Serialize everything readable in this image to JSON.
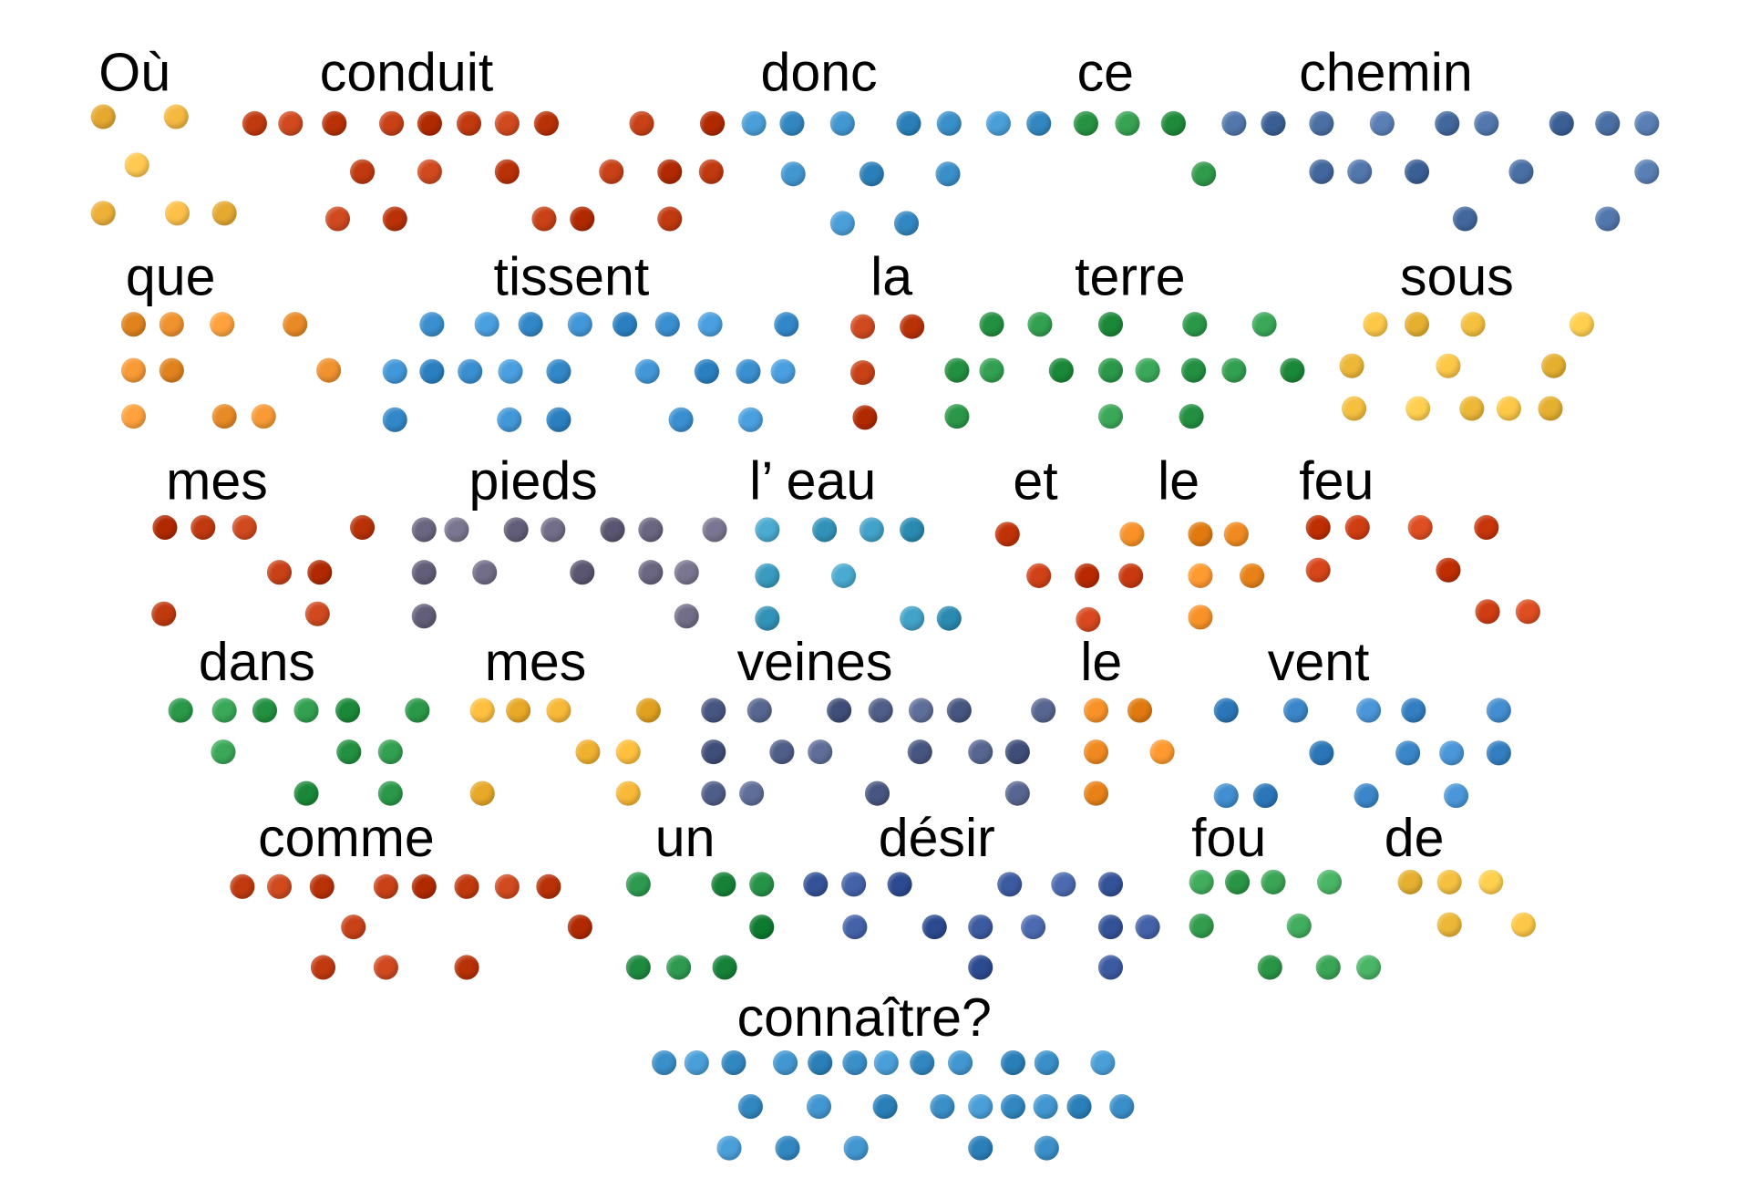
{
  "poem": {
    "words": [
      {
        "text": "Où",
        "color": "#f5b942"
      },
      {
        "text": "conduit",
        "color": "#c0390f"
      },
      {
        "text": "donc",
        "color": "#3a8fc9"
      },
      {
        "text": "ce",
        "color": "#2f9a4a"
      },
      {
        "text": "chemin",
        "color": "#4a6fa5"
      },
      {
        "text": "que",
        "color": "#f0922e"
      },
      {
        "text": "tissent",
        "color": "#3a8fd0"
      },
      {
        "text": "la",
        "color": "#c0390f"
      },
      {
        "text": "terre",
        "color": "#2a9848"
      },
      {
        "text": "sous",
        "color": "#f5c040"
      },
      {
        "text": "mes",
        "color": "#c0390f"
      },
      {
        "text": "pieds",
        "color": "#6a6580"
      },
      {
        "text": "l’ eau",
        "color": "#3a9ac0"
      },
      {
        "text": "et",
        "color": "#c8390f"
      },
      {
        "text": "le",
        "color": "#f08a20"
      },
      {
        "text": "feu",
        "color": "#cf3d12"
      },
      {
        "text": "dans",
        "color": "#2a9848"
      },
      {
        "text": "mes",
        "color": "#f0b030"
      },
      {
        "text": "veines",
        "color": "#4f5e88"
      },
      {
        "text": "le",
        "color": "#f08a20"
      },
      {
        "text": "vent",
        "color": "#3a86c8"
      },
      {
        "text": "comme",
        "color": "#c0390f"
      },
      {
        "text": "un",
        "color": "#1e8a40"
      },
      {
        "text": "désir",
        "color": "#3c5aa0"
      },
      {
        "text": "fou",
        "color": "#3aa555"
      },
      {
        "text": "de",
        "color": "#f5c040"
      },
      {
        "text": "connaître?",
        "color": "#3a8fc9"
      }
    ]
  }
}
